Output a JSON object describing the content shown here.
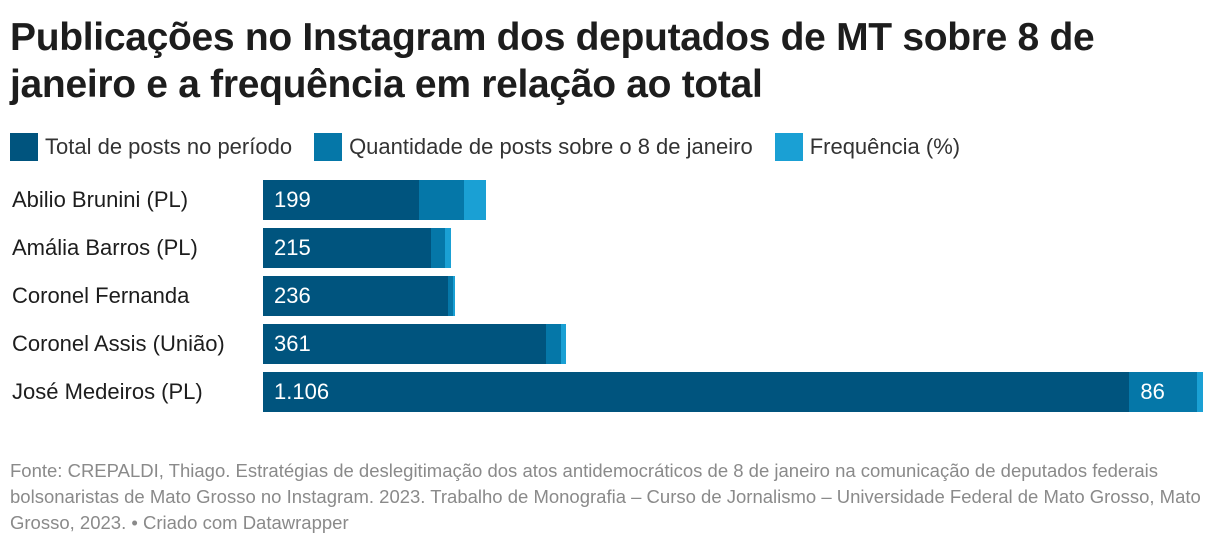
{
  "title": "Publicações no Instagram dos deputados de MT sobre 8 de janeiro e a frequência em relação ao total",
  "legend": [
    {
      "label": "Total de posts no período",
      "color": "#00547e"
    },
    {
      "label": "Quantidade de posts sobre o 8 de janeiro",
      "color": "#0577a8"
    },
    {
      "label": "Frequência (%)",
      "color": "#1aa0d4"
    }
  ],
  "footer": {
    "source": "Fonte: CREPALDI, Thiago. Estratégias de deslegitimação dos atos antidemocráticos de 8 de janeiro na comunicação de deputados federais bolsonaristas de Mato Grosso no Instagram. 2023. Trabalho de Monografia – Curso de Jornalismo – Universidade Federal de Mato Grosso, Mato Grosso, 2023.",
    "credit": "Criado com Datawrapper"
  },
  "chart_data": {
    "type": "bar",
    "orientation": "horizontal",
    "stacked": true,
    "title": "Publicações no Instagram dos deputados de MT sobre 8 de janeiro e a frequência em relação ao total",
    "categories": [
      "Abilio Brunini (PL)",
      "Amália Barros (PL)",
      "Coronel Fernanda",
      "Coronel Assis (União)",
      "José Medeiros (PL)"
    ],
    "series": [
      {
        "name": "Total de posts no período",
        "color": "#00547e",
        "values": [
          199,
          215,
          236,
          361,
          1106
        ],
        "labels": [
          "199",
          "215",
          "236",
          "361",
          "1.106"
        ]
      },
      {
        "name": "Quantidade de posts sobre o 8 de janeiro",
        "color": "#0577a8",
        "values": [
          57,
          17,
          6,
          20,
          86
        ],
        "labels": [
          "",
          "",
          "",
          "",
          "86"
        ]
      },
      {
        "name": "Frequência (%)",
        "color": "#1aa0d4",
        "values": [
          28.6,
          7.9,
          2.5,
          5.5,
          7.8
        ],
        "labels": [
          "",
          "",
          "",
          "",
          ""
        ]
      }
    ],
    "xlim": [
      0,
      1200
    ],
    "legend_position": "top"
  }
}
